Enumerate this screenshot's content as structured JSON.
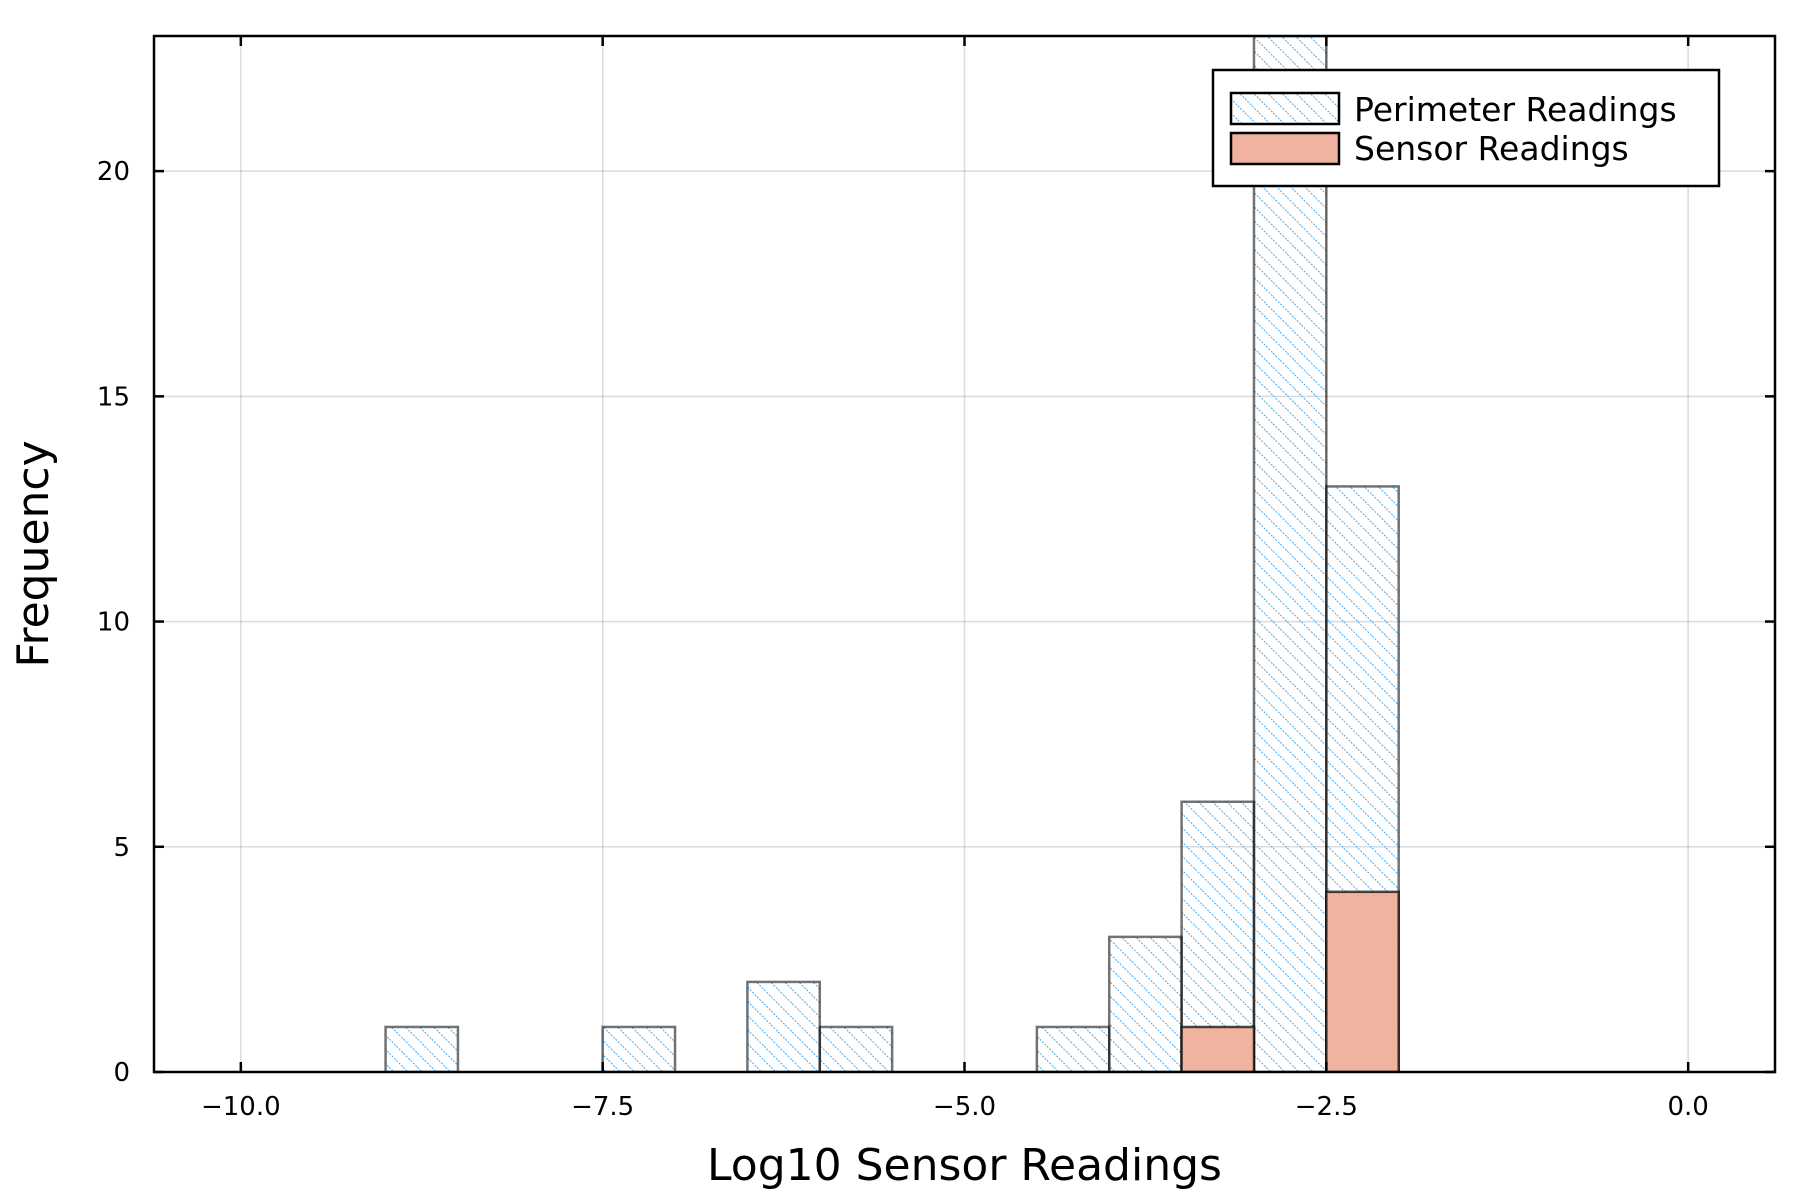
{
  "chart_data": {
    "type": "bar",
    "title": "",
    "xlabel": "Log10 Sensor Readings",
    "ylabel": "Frequency",
    "xlim": [
      -10.6,
      0.6
    ],
    "ylim": [
      0,
      23
    ],
    "grid": true,
    "legend_position": "top-right",
    "xticks": [
      {
        "value": -10.0,
        "label": "−10.0"
      },
      {
        "value": -7.5,
        "label": "−7.5"
      },
      {
        "value": -5.0,
        "label": "−5.0"
      },
      {
        "value": -2.5,
        "label": "−2.5"
      },
      {
        "value": 0.0,
        "label": "0.0"
      }
    ],
    "yticks": [
      {
        "value": 0,
        "label": "0"
      },
      {
        "value": 5,
        "label": "5"
      },
      {
        "value": 10,
        "label": "10"
      },
      {
        "value": 15,
        "label": "15"
      },
      {
        "value": 20,
        "label": "20"
      }
    ],
    "bin_width": 0.5,
    "series": [
      {
        "name": "Perimeter Readings",
        "fill": "hatched",
        "color": "#4da6e8",
        "bins": [
          {
            "x0": -9.0,
            "count": 1
          },
          {
            "x0": -7.5,
            "count": 1
          },
          {
            "x0": -6.5,
            "count": 2
          },
          {
            "x0": -6.0,
            "count": 1
          },
          {
            "x0": -4.5,
            "count": 1
          },
          {
            "x0": -4.0,
            "count": 3
          },
          {
            "x0": -3.5,
            "count": 6
          },
          {
            "x0": -3.0,
            "count": 23
          },
          {
            "x0": -2.5,
            "count": 13
          }
        ]
      },
      {
        "name": "Sensor Readings",
        "fill": "solid",
        "color": "#efb39f",
        "bins": [
          {
            "x0": -3.5,
            "count": 1
          },
          {
            "x0": -2.5,
            "count": 4
          }
        ]
      }
    ]
  }
}
